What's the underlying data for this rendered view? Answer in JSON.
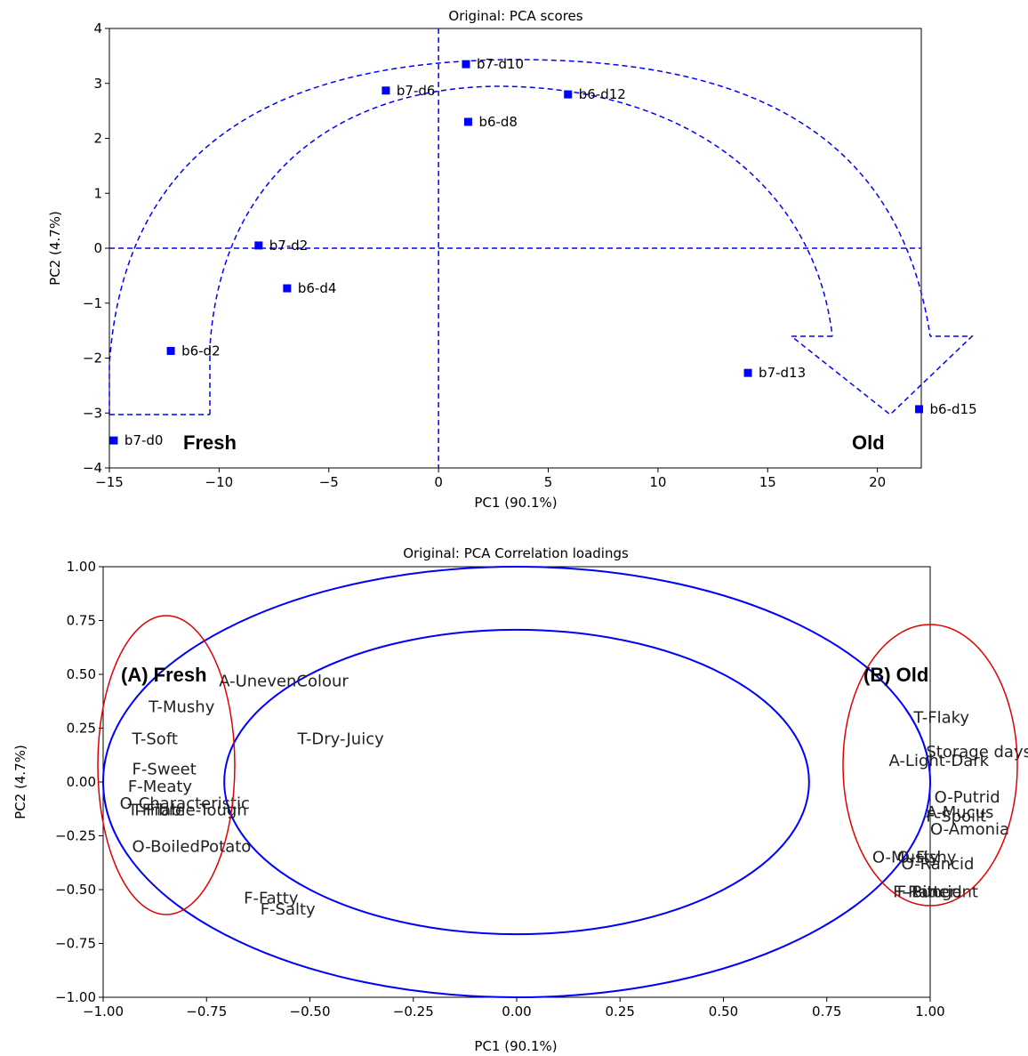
{
  "chart_data": [
    {
      "type": "scatter",
      "title": "Original: PCA scores",
      "xlabel": "PC1 (90.1%)",
      "ylabel": "PC2 (4.7%)",
      "xlim": [
        -15,
        22
      ],
      "ylim": [
        -4,
        4
      ],
      "xticks": [
        -15,
        -10,
        -5,
        0,
        5,
        10,
        15,
        20
      ],
      "xtick_labels": [
        "−15",
        "−10",
        "−5",
        "0",
        "5",
        "10",
        "15",
        "20"
      ],
      "yticks": [
        -4,
        -3,
        -2,
        -1,
        0,
        1,
        2,
        3,
        4
      ],
      "ytick_labels": [
        "−4",
        "−3",
        "−2",
        "−1",
        "0",
        "1",
        "2",
        "3",
        "4"
      ],
      "color": "#0000ff",
      "points": [
        {
          "label": "b7-d0",
          "x": -14.8,
          "y": -3.5
        },
        {
          "label": "b6-d2",
          "x": -12.2,
          "y": -1.87
        },
        {
          "label": "b7-d2",
          "x": -8.2,
          "y": 0.05
        },
        {
          "label": "b6-d4",
          "x": -6.9,
          "y": -0.73
        },
        {
          "label": "b7-d6",
          "x": -2.4,
          "y": 2.87
        },
        {
          "label": "b7-d10",
          "x": 1.25,
          "y": 3.35
        },
        {
          "label": "b6-d8",
          "x": 1.35,
          "y": 2.3
        },
        {
          "label": "b6-d12",
          "x": 5.9,
          "y": 2.8
        },
        {
          "label": "b7-d13",
          "x": 14.1,
          "y": -2.27
        },
        {
          "label": "b6-d15",
          "x": 21.9,
          "y": -2.93
        }
      ],
      "annotations": [
        "Fresh",
        "Old"
      ]
    },
    {
      "type": "scatter",
      "title": "Original: PCA Correlation loadings",
      "xlabel": "PC1 (90.1%)",
      "ylabel": "PC2 (4.7%)",
      "xlim": [
        -1.0,
        1.0
      ],
      "ylim": [
        -1.0,
        1.0
      ],
      "xticks": [
        -1.0,
        -0.75,
        -0.5,
        -0.25,
        0.0,
        0.25,
        0.5,
        0.75,
        1.0
      ],
      "xtick_labels": [
        "−1.00",
        "−0.75",
        "−0.50",
        "−0.25",
        "0.00",
        "0.25",
        "0.50",
        "0.75",
        "1.00"
      ],
      "yticks": [
        -1.0,
        -0.75,
        -0.5,
        -0.25,
        0.0,
        0.25,
        0.5,
        0.75,
        1.0
      ],
      "ytick_labels": [
        "−1.00",
        "−0.75",
        "−0.50",
        "−0.25",
        "0.00",
        "0.25",
        "0.50",
        "0.75",
        "1.00"
      ],
      "circles": [
        1.0,
        0.7071
      ],
      "circle_color": "#0000ff",
      "loadings": [
        {
          "label": "A-UnevenColour",
          "x": -0.72,
          "y": 0.47
        },
        {
          "label": "T-Mushy",
          "x": -0.89,
          "y": 0.35
        },
        {
          "label": "T-Soft",
          "x": -0.93,
          "y": 0.2
        },
        {
          "label": "T-Dry-Juicy",
          "x": -0.53,
          "y": 0.2
        },
        {
          "label": "F-Sweet",
          "x": -0.93,
          "y": 0.06
        },
        {
          "label": "F-Meaty",
          "x": -0.94,
          "y": -0.02
        },
        {
          "label": "O-Characteristic",
          "x": -0.96,
          "y": -0.1
        },
        {
          "label": "T-Fibre",
          "x": -0.93,
          "y": -0.13
        },
        {
          "label": "T-Friable-Tough",
          "x": -0.94,
          "y": -0.13
        },
        {
          "label": "O-BoiledPotato",
          "x": -0.93,
          "y": -0.3
        },
        {
          "label": "F-Fatty",
          "x": -0.66,
          "y": -0.54
        },
        {
          "label": "F-Salty",
          "x": -0.62,
          "y": -0.59
        },
        {
          "label": "T-Flaky",
          "x": 0.96,
          "y": 0.3
        },
        {
          "label": "Storage days",
          "x": 0.99,
          "y": 0.14
        },
        {
          "label": "A-Light-Dark",
          "x": 0.9,
          "y": 0.1
        },
        {
          "label": "O-Putrid",
          "x": 1.01,
          "y": -0.07
        },
        {
          "label": "A-Mucus",
          "x": 0.99,
          "y": -0.14
        },
        {
          "label": "F-Spoilt",
          "x": 0.99,
          "y": -0.16
        },
        {
          "label": "O-Amonia",
          "x": 1.0,
          "y": -0.22
        },
        {
          "label": "O-Musty",
          "x": 0.86,
          "y": -0.35
        },
        {
          "label": "O-Fishy",
          "x": 0.92,
          "y": -0.35
        },
        {
          "label": "O-Rancid",
          "x": 0.93,
          "y": -0.38
        },
        {
          "label": "F-Rancid",
          "x": 0.91,
          "y": -0.51
        },
        {
          "label": "F-Pungent",
          "x": 0.92,
          "y": -0.51
        },
        {
          "label": "F-Bitter",
          "x": 0.92,
          "y": -0.51
        }
      ],
      "annotations": [
        "(A)  Fresh",
        "(B) Old"
      ]
    }
  ]
}
